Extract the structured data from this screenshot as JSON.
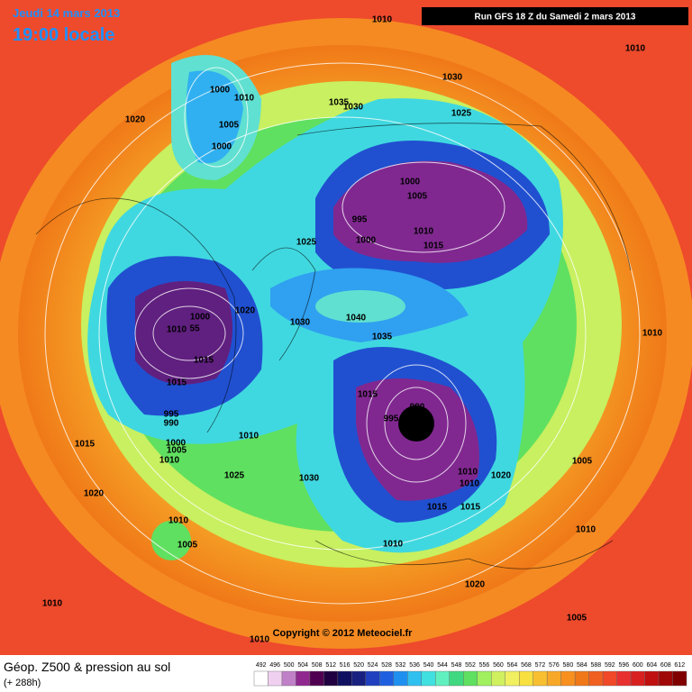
{
  "header": {
    "date": "Jeudi 14 mars 2013",
    "time": "19:00 locale",
    "run": "Run GFS 18 Z du Samedi 2 mars 2013"
  },
  "map": {
    "pressure_labels": [
      "1010",
      "1010",
      "1030",
      "1000",
      "1010",
      "1035",
      "1030",
      "1025",
      "1020",
      "1005",
      "1000",
      "1000",
      "1005",
      "995",
      "1010",
      "1015",
      "1000",
      "1025",
      "1020",
      "1030",
      "1000",
      "1040",
      "1010",
      "55",
      "1035",
      "1010",
      "1015",
      "1015",
      "1015",
      "990",
      "995",
      "995",
      "990",
      "1010",
      "1015",
      "1000",
      "1005",
      "1010",
      "1030",
      "1025",
      "1020",
      "1010",
      "1010",
      "1005",
      "1020",
      "1015",
      "1015",
      "1010",
      "1005",
      "1010",
      "1010",
      "1020",
      "1010",
      "1005",
      "1010"
    ],
    "copyright": "Copyright © 2012 Meteociel.fr"
  },
  "footer": {
    "title": "Géop. Z500 & pression au sol",
    "lead": "(+ 288h)"
  },
  "legend": {
    "values": [
      "492",
      "496",
      "500",
      "504",
      "508",
      "512",
      "516",
      "520",
      "524",
      "528",
      "532",
      "536",
      "540",
      "544",
      "548",
      "552",
      "556",
      "560",
      "564",
      "568",
      "572",
      "576",
      "580",
      "584",
      "588",
      "592",
      "596",
      "600",
      "604",
      "608",
      "612"
    ],
    "colors": [
      "#ffffff",
      "#f0d0f0",
      "#c080c8",
      "#902890",
      "#500050",
      "#200040",
      "#101060",
      "#182080",
      "#2040c0",
      "#2060e0",
      "#2090f0",
      "#30c0f0",
      "#40e0e0",
      "#60f0c0",
      "#40d880",
      "#60e060",
      "#a0f060",
      "#d0f060",
      "#f0f060",
      "#f8e040",
      "#f8c030",
      "#f8a828",
      "#f89020",
      "#f07818",
      "#f06020",
      "#f04828",
      "#e83030",
      "#d82020",
      "#c01010",
      "#a00808",
      "#800000"
    ]
  }
}
